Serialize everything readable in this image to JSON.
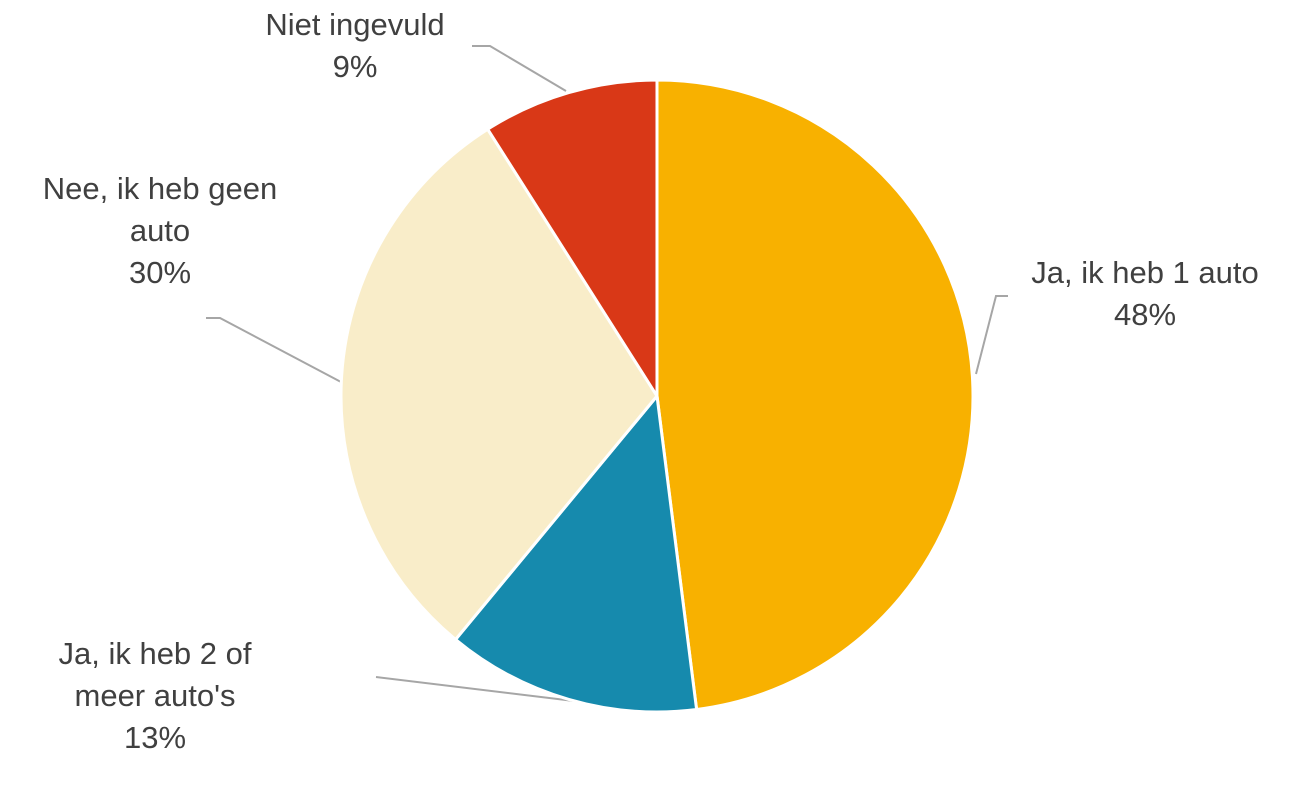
{
  "chart_data": {
    "type": "pie",
    "title": "",
    "legend": "none",
    "slices": [
      {
        "label_lines": [
          "Ja, ik heb 1 auto"
        ],
        "value": 48,
        "value_label": "48%",
        "color": "#F8B100"
      },
      {
        "label_lines": [
          "Ja, ik heb 2 of",
          "meer auto's"
        ],
        "value": 13,
        "value_label": "13%",
        "color": "#168AAD"
      },
      {
        "label_lines": [
          "Nee, ik heb geen",
          "auto"
        ],
        "value": 30,
        "value_label": "30%",
        "color": "#F9EDC9"
      },
      {
        "label_lines": [
          "Niet ingevuld"
        ],
        "value": 9,
        "value_label": "9%",
        "color": "#D93817"
      }
    ]
  }
}
